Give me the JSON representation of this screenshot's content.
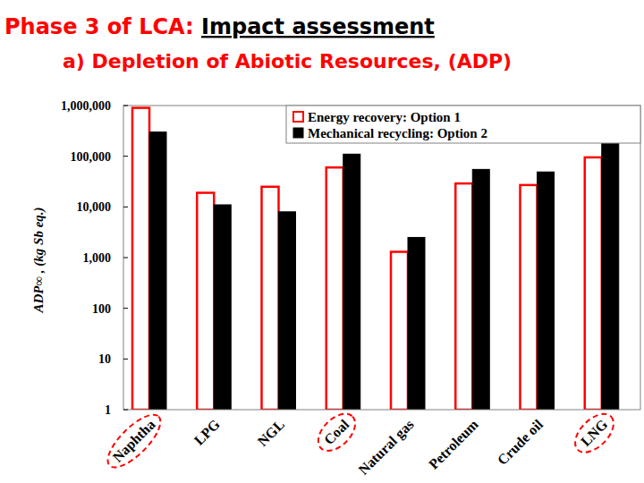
{
  "chart_data": {
    "type": "bar",
    "title": "Phase 3 of LCA: Impact assessment",
    "subtitle": "a) Depletion of Abiotic Resources, (ADP)",
    "y_label": "ADP∞ , (kg Sb eq.)",
    "categories": [
      "Naphtha",
      "LPG",
      "NGL",
      "Coal",
      "Natural gas",
      "Petroleum",
      "Crude oil",
      "LNG"
    ],
    "series": [
      {
        "name": "Energy recovery: Option 1",
        "color": "#ff0000",
        "values": [
          900000,
          19000,
          25000,
          60000,
          1300,
          29000,
          27000,
          95000
        ]
      },
      {
        "name": "Mechanical recycling: Option 2",
        "color": "#000000",
        "values": [
          300000,
          11000,
          8000,
          110000,
          2500,
          55000,
          49000,
          180000
        ]
      }
    ],
    "log": "y",
    "ylim": [
      1,
      1000000
    ],
    "yticks": [
      1,
      10,
      100,
      {
        "value": 1000,
        "label": "1,000"
      },
      {
        "value": 10000,
        "label": "10,000"
      },
      {
        "value": 100000,
        "label": "100,000"
      },
      {
        "value": 1000000,
        "label": "1,000,000"
      }
    ],
    "grid": false,
    "legend": "top-right"
  }
}
